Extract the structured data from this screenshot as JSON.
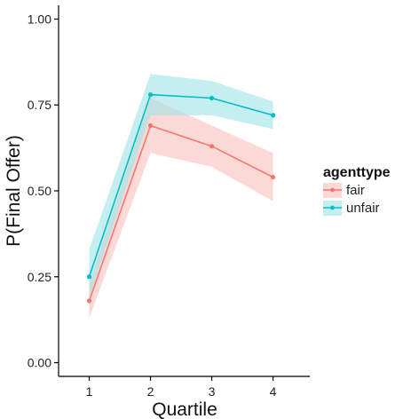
{
  "chart_data": {
    "type": "line",
    "xlabel": "Quartile",
    "ylabel": "P(Final Offer)",
    "x": [
      1,
      2,
      3,
      4
    ],
    "x_tick_labels": [
      "1",
      "2",
      "3",
      "4"
    ],
    "y_tick_labels": [
      "0.00",
      "0.25",
      "0.50",
      "0.75",
      "1.00"
    ],
    "y_ticks": [
      0,
      0.25,
      0.5,
      0.75,
      1.0
    ],
    "xlim": [
      0.5,
      4.6
    ],
    "ylim": [
      -0.04,
      1.04
    ],
    "grid": false,
    "legend": {
      "title": "agenttype",
      "placement": "right"
    },
    "series": [
      {
        "name": "fair",
        "color": "#F8766D",
        "ribbon_color": "#F8BFBB",
        "values": [
          0.18,
          0.69,
          0.63,
          0.54
        ],
        "lower": [
          0.13,
          0.61,
          0.57,
          0.47
        ],
        "upper": [
          0.23,
          0.77,
          0.69,
          0.61
        ]
      },
      {
        "name": "unfair",
        "color": "#00BFC4",
        "ribbon_color": "#9FE2E6",
        "values": [
          0.25,
          0.78,
          0.77,
          0.72
        ],
        "lower": [
          0.19,
          0.72,
          0.72,
          0.68
        ],
        "upper": [
          0.33,
          0.84,
          0.82,
          0.76
        ]
      }
    ]
  }
}
